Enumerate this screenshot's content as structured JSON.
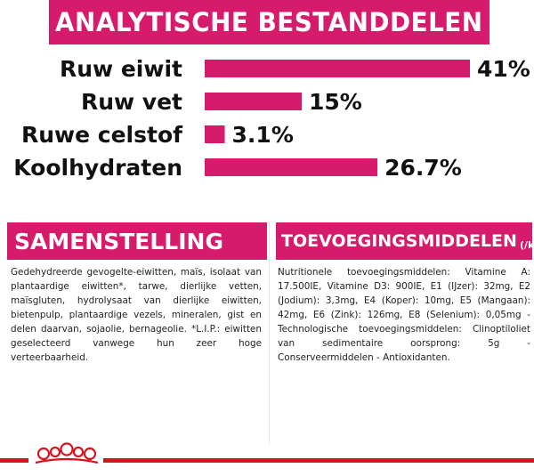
{
  "header": {
    "title": "ANALYTISCHE BESTANDDELEN"
  },
  "chart_data": {
    "type": "bar",
    "orientation": "horizontal",
    "categories": [
      "Ruw eiwit",
      "Ruw vet",
      "Ruwe celstof",
      "Koolhydraten"
    ],
    "values": [
      41,
      15,
      3.1,
      26.7
    ],
    "value_labels": [
      "41%",
      "15%",
      "3.1%",
      "26.7%"
    ],
    "bar_color": "#d61a6c",
    "grid": false
  },
  "composition": {
    "title": "SAMENSTELLING",
    "text": "Gedehydreerde gevogelte-eiwitten, maïs, isolaat van plantaardige eiwitten*, tarwe, dierlijke vetten, maïsgluten, hydrolysaat van dierlijke eiwitten, bietenpulp, plantaardige vezels, mineralen, gist en delen daarvan, sojaolie, bernageolie. *L.I.P.: eiwitten geselecteerd vanwege hun zeer hoge verteerbaarheid."
  },
  "additives": {
    "title": "TOEVOEGINGSMIDDELEN",
    "unit": "(/kg)",
    "text": "Nutritionele toevoegingsmiddelen: Vitamine A: 17.500IE, Vitamine D3: 900IE, E1 (IJzer): 32mg, E2 (Jodium): 3,3mg, E4 (Koper): 10mg, E5 (Mangaan): 42mg, E6 (Zink): 126mg, E8 (Selenium): 0,05mg - Technologische toevoegingsmiddelen: Clinoptiloliet van sedimentaire oorsprong: 5g - Conserveermiddelen - Antioxidanten."
  },
  "colors": {
    "accent": "#d61a6c",
    "brand_red": "#d6141e"
  },
  "footer": {
    "logo_icon": "royal-canin-crown-icon"
  }
}
